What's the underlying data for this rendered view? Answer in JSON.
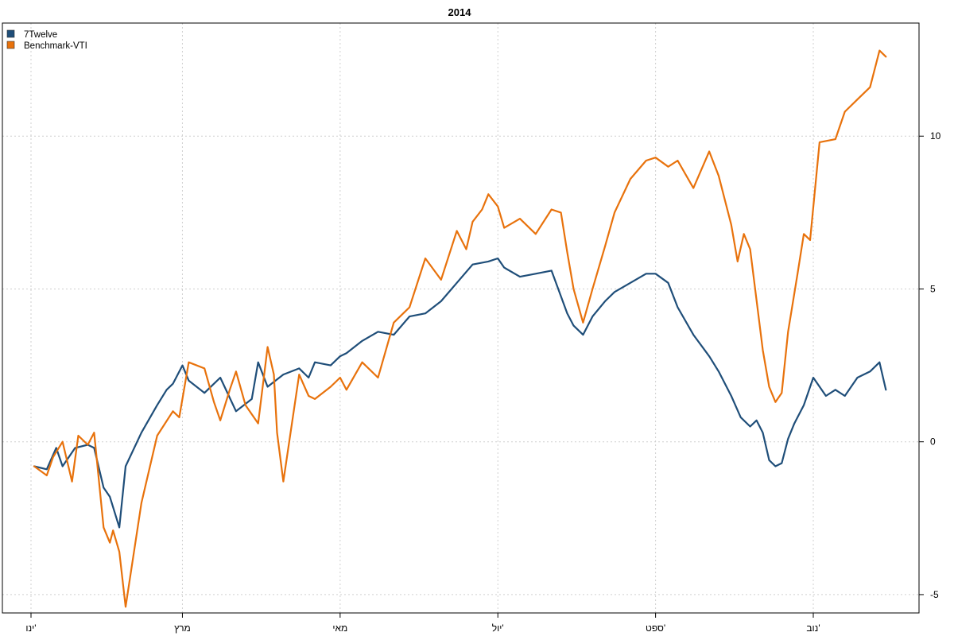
{
  "chart_data": {
    "type": "line",
    "title": "2014",
    "xlabel": "",
    "ylabel": "",
    "x_range": [
      0,
      272
    ],
    "ylim": [
      -5.6,
      13.7
    ],
    "y_ticks": [
      -5,
      0,
      5,
      10
    ],
    "y_axis_side": "right",
    "x_ticks": [
      {
        "x": 0,
        "label": "ינו'"
      },
      {
        "x": 48,
        "label": "מרץ"
      },
      {
        "x": 98,
        "label": "מאי"
      },
      {
        "x": 148,
        "label": "יול'"
      },
      {
        "x": 198,
        "label": "ספט'"
      },
      {
        "x": 248,
        "label": "נוב'"
      }
    ],
    "grid": true,
    "legend_position": "top-left",
    "series": [
      {
        "name": "7Twelve",
        "color": "#1f4e79",
        "x": [
          1,
          5,
          8,
          10,
          14,
          18,
          20,
          23,
          25,
          28,
          30,
          35,
          40,
          43,
          45,
          48,
          50,
          55,
          58,
          60,
          65,
          70,
          72,
          75,
          80,
          85,
          88,
          90,
          95,
          98,
          100,
          105,
          110,
          115,
          120,
          125,
          130,
          135,
          140,
          145,
          148,
          150,
          155,
          160,
          165,
          170,
          172,
          175,
          178,
          182,
          185,
          190,
          195,
          198,
          202,
          205,
          210,
          215,
          218,
          222,
          225,
          228,
          230,
          232,
          234,
          236,
          238,
          240,
          242,
          245,
          248,
          252,
          255,
          258,
          262,
          266,
          269,
          271
        ],
        "y": [
          -0.8,
          -0.9,
          -0.2,
          -0.8,
          -0.2,
          -0.1,
          -0.2,
          -1.5,
          -1.8,
          -2.8,
          -0.8,
          0.3,
          1.2,
          1.7,
          1.9,
          2.5,
          2.0,
          1.6,
          1.9,
          2.1,
          1.0,
          1.4,
          2.6,
          1.8,
          2.2,
          2.4,
          2.1,
          2.6,
          2.5,
          2.8,
          2.9,
          3.3,
          3.6,
          3.5,
          4.1,
          4.2,
          4.6,
          5.2,
          5.8,
          5.9,
          6.0,
          5.7,
          5.4,
          5.5,
          5.6,
          4.2,
          3.8,
          3.5,
          4.1,
          4.6,
          4.9,
          5.2,
          5.5,
          5.5,
          5.2,
          4.4,
          3.5,
          2.8,
          2.3,
          1.5,
          0.8,
          0.5,
          0.7,
          0.3,
          -0.6,
          -0.8,
          -0.7,
          0.1,
          0.6,
          1.2,
          2.1,
          1.5,
          1.7,
          1.5,
          2.1,
          2.3,
          2.6,
          1.7
        ]
      },
      {
        "name": "Benchmark-VTI",
        "color": "#e8720c",
        "x": [
          1,
          5,
          7,
          10,
          13,
          15,
          18,
          20,
          23,
          25,
          26,
          28,
          30,
          35,
          40,
          45,
          47,
          50,
          55,
          58,
          60,
          63,
          65,
          68,
          72,
          75,
          77,
          78,
          80,
          85,
          88,
          90,
          95,
          98,
          100,
          105,
          110,
          115,
          120,
          125,
          130,
          135,
          138,
          140,
          143,
          145,
          148,
          150,
          155,
          160,
          165,
          168,
          170,
          172,
          175,
          178,
          182,
          185,
          190,
          195,
          198,
          202,
          205,
          210,
          215,
          218,
          222,
          224,
          226,
          228,
          232,
          234,
          236,
          238,
          240,
          243,
          245,
          247,
          250,
          255,
          258,
          262,
          266,
          269,
          271
        ],
        "y": [
          -0.8,
          -1.1,
          -0.5,
          0.0,
          -1.3,
          0.2,
          -0.1,
          0.3,
          -2.8,
          -3.3,
          -2.9,
          -3.6,
          -5.4,
          -2.0,
          0.2,
          1.0,
          0.8,
          2.6,
          2.4,
          1.3,
          0.7,
          1.7,
          2.3,
          1.2,
          0.6,
          3.1,
          2.2,
          0.3,
          -1.3,
          2.2,
          1.5,
          1.4,
          1.8,
          2.1,
          1.7,
          2.6,
          2.1,
          3.9,
          4.4,
          6.0,
          5.3,
          6.9,
          6.3,
          7.2,
          7.6,
          8.1,
          7.7,
          7.0,
          7.3,
          6.8,
          7.6,
          7.5,
          6.2,
          5.0,
          3.9,
          5.0,
          6.4,
          7.5,
          8.6,
          9.2,
          9.3,
          9.0,
          9.2,
          8.3,
          9.5,
          8.7,
          7.1,
          5.9,
          6.8,
          6.3,
          3.0,
          1.8,
          1.3,
          1.6,
          3.6,
          5.5,
          6.8,
          6.6,
          9.8,
          9.9,
          10.8,
          11.2,
          11.6,
          12.8,
          12.6
        ]
      }
    ]
  }
}
